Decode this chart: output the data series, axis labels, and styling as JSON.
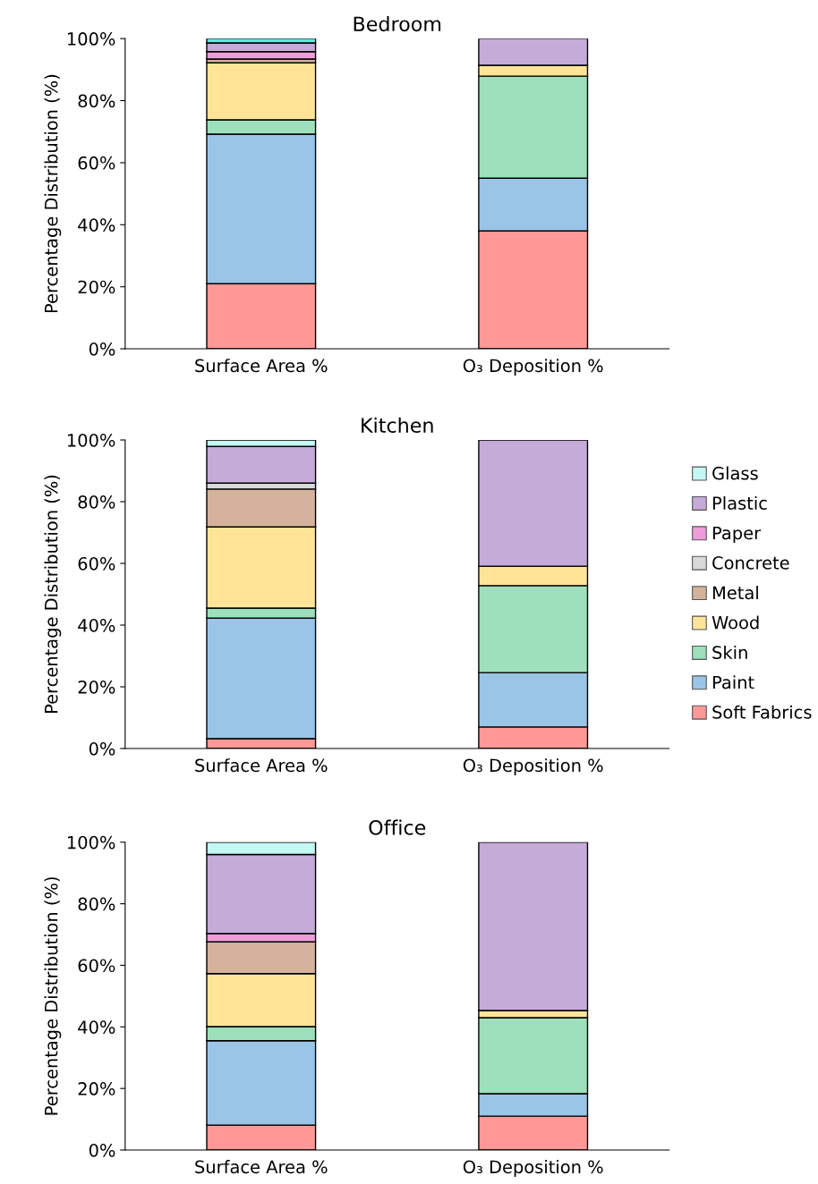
{
  "chart_data": [
    {
      "type": "bar",
      "stacked": true,
      "title": "Bedroom",
      "ylabel": "Percentage Distribution (%)",
      "categories": [
        "Surface Area %",
        "O₃ Deposition %"
      ],
      "ylim": [
        0,
        100
      ],
      "yticks": [
        {
          "value": 0,
          "label": "0%"
        },
        {
          "value": 20,
          "label": "20%"
        },
        {
          "value": 40,
          "label": "40%"
        },
        {
          "value": 60,
          "label": "60%"
        },
        {
          "value": 80,
          "label": "80%"
        },
        {
          "value": 100,
          "label": "100%"
        }
      ],
      "series": [
        {
          "color": "#ff9896",
          "values": [
            21.0,
            38.0
          ]
        },
        {
          "color": "#9ac5e6",
          "values": [
            48.2,
            17.0
          ]
        },
        {
          "color": "#9de0bb",
          "values": [
            4.6,
            32.9
          ]
        },
        {
          "color": "#ffe498",
          "values": [
            18.4,
            3.5
          ]
        },
        {
          "color": "#d4b29c",
          "values": [
            1.2,
            null
          ]
        },
        {
          "color": "#ef9dd9",
          "values": [
            2.4,
            null
          ]
        },
        {
          "color": "#c5abd8",
          "values": [
            2.8,
            8.6
          ]
        },
        {
          "color": "#66e8e0",
          "values": [
            1.4,
            null
          ]
        }
      ]
    },
    {
      "type": "bar",
      "stacked": true,
      "title": "Kitchen",
      "ylabel": "Percentage Distribution (%)",
      "categories": [
        "Surface Area %",
        "O₃ Deposition %"
      ],
      "ylim": [
        0,
        100
      ],
      "yticks": [
        {
          "value": 0,
          "label": "0%"
        },
        {
          "value": 20,
          "label": "20%"
        },
        {
          "value": 40,
          "label": "40%"
        },
        {
          "value": 60,
          "label": "60%"
        },
        {
          "value": 80,
          "label": "80%"
        },
        {
          "value": 100,
          "label": "100%"
        }
      ],
      "legend": "right",
      "series": [
        {
          "name": "Soft Fabrics",
          "color": "#ff9896",
          "values": [
            3.2,
            7.0
          ]
        },
        {
          "name": "Paint",
          "color": "#9ac5e6",
          "values": [
            39.1,
            17.6
          ]
        },
        {
          "name": "Skin",
          "color": "#9de0bb",
          "values": [
            3.2,
            28.2
          ]
        },
        {
          "name": "Wood",
          "color": "#ffe498",
          "values": [
            26.3,
            6.3
          ]
        },
        {
          "name": "Metal",
          "color": "#d4b29c",
          "values": [
            12.3,
            null
          ]
        },
        {
          "name": "Concrete",
          "color": "#d9d9d9",
          "values": [
            1.9,
            null
          ]
        },
        {
          "name": "Paper",
          "color": "#ef9dd9",
          "values": [
            null,
            null
          ]
        },
        {
          "name": "Plastic",
          "color": "#c5abd8",
          "values": [
            11.9,
            40.9
          ]
        },
        {
          "name": "Glass",
          "color": "#c4f8f4",
          "values": [
            2.1,
            null
          ]
        }
      ]
    },
    {
      "type": "bar",
      "stacked": true,
      "title": "Office",
      "ylabel": "Percentage Distribution (%)",
      "categories": [
        "Surface Area %",
        "O₃ Deposition %"
      ],
      "ylim": [
        0,
        100
      ],
      "yticks": [
        {
          "value": 0,
          "label": "0%"
        },
        {
          "value": 20,
          "label": "20%"
        },
        {
          "value": 40,
          "label": "40%"
        },
        {
          "value": 60,
          "label": "60%"
        },
        {
          "value": 80,
          "label": "80%"
        },
        {
          "value": 100,
          "label": "100%"
        }
      ],
      "series": [
        {
          "color": "#ff9896",
          "values": [
            8.1,
            11.0
          ]
        },
        {
          "color": "#9ac5e6",
          "values": [
            27.4,
            7.3
          ]
        },
        {
          "color": "#9de0bb",
          "values": [
            4.6,
            24.7
          ]
        },
        {
          "color": "#ffe498",
          "values": [
            17.2,
            2.3
          ]
        },
        {
          "color": "#d4b29c",
          "values": [
            10.3,
            null
          ]
        },
        {
          "color": "#ef9dd9",
          "values": [
            2.7,
            null
          ]
        },
        {
          "color": "#c5abd8",
          "values": [
            25.7,
            54.7
          ]
        },
        {
          "color": "#c4f8f4",
          "values": [
            4.0,
            null
          ]
        }
      ]
    }
  ]
}
